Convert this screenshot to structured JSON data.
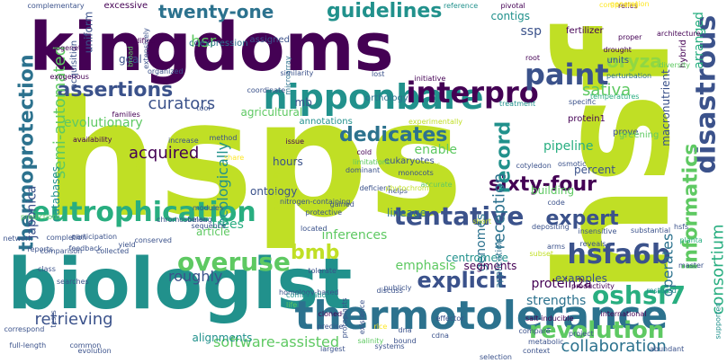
{
  "palette": {
    "yellowgreen": "#c0df25",
    "green": "#5ec962",
    "teal": "#21918c",
    "tealblue": "#2c728e",
    "blue": "#3b528b",
    "indigo": "#482878",
    "purple": "#440154",
    "lightgreen": "#90d743",
    "yellow": "#fde725",
    "cyan": "#28ae80"
  },
  "words": [
    {
      "text": "hsps",
      "color": "#c0df25"
    },
    {
      "text": "hsf",
      "color": "#c0df25"
    },
    {
      "text": "kingdoms",
      "color": "#440154"
    },
    {
      "text": "biologist",
      "color": "#21918c"
    },
    {
      "text": "thermotolerance",
      "color": "#2c728e"
    },
    {
      "text": "nipponbare",
      "color": "#21918c"
    },
    {
      "text": "interpro",
      "color": "#440154"
    },
    {
      "text": "paint",
      "color": "#3b528b"
    },
    {
      "text": "eutrophication",
      "color": "#28ae80"
    },
    {
      "text": "tentative",
      "color": "#3b528b"
    },
    {
      "text": "hsfa6b",
      "color": "#3b528b"
    },
    {
      "text": "overuse",
      "color": "#5ec962"
    },
    {
      "text": "revolution",
      "color": "#5ec962"
    },
    {
      "text": "oshsf7",
      "color": "#28ae80"
    },
    {
      "text": "thermoprotection",
      "color": "#2c728e"
    },
    {
      "text": "disastrous",
      "color": "#3b528b"
    },
    {
      "text": "informatics",
      "color": "#5ec962"
    },
    {
      "text": "assertions",
      "color": "#3b528b"
    },
    {
      "text": "guidelines",
      "color": "#21918c"
    },
    {
      "text": "twenty-one",
      "color": "#2c728e"
    },
    {
      "text": "sixty-four",
      "color": "#440154"
    },
    {
      "text": "explicit",
      "color": "#3b528b"
    },
    {
      "text": "expert",
      "color": "#3b528b"
    },
    {
      "text": "record",
      "color": "#21918c"
    },
    {
      "text": "dedicates",
      "color": "#2c728e"
    },
    {
      "text": "acquired",
      "color": "#440154"
    },
    {
      "text": "curators",
      "color": "#3b528b"
    },
    {
      "text": "retrieving",
      "color": "#3b528b"
    },
    {
      "text": "collaboration",
      "color": "#2c728e"
    },
    {
      "text": "reception",
      "color": "#2c728e"
    },
    {
      "text": "oryza",
      "color": "#90d743"
    },
    {
      "text": "sativa",
      "color": "#5ec962"
    },
    {
      "text": "operates",
      "color": "#2c728e"
    },
    {
      "text": "consortium",
      "color": "#28ae80"
    },
    {
      "text": "bmb",
      "color": "#c0df25"
    },
    {
      "text": "semi-automated",
      "color": "#5ec962"
    },
    {
      "text": "software-assisted",
      "color": "#5ec962"
    },
    {
      "text": "ecologically",
      "color": "#21918c"
    },
    {
      "text": "emphasis",
      "color": "#5ec962"
    },
    {
      "text": "enable",
      "color": "#5ec962"
    },
    {
      "text": "inferences",
      "color": "#5ec962"
    },
    {
      "text": "evolutionary",
      "color": "#5ec962"
    },
    {
      "text": "roughly",
      "color": "#3b528b"
    },
    {
      "text": "strengths",
      "color": "#2c728e"
    },
    {
      "text": "protein2a",
      "color": "#440154"
    },
    {
      "text": "genomes",
      "color": "#2c728e"
    },
    {
      "text": "japonica",
      "color": "#3b528b"
    },
    {
      "text": "macronutrient",
      "color": "#3b528b"
    },
    {
      "text": "hsr",
      "color": "#5ec962"
    },
    {
      "text": "ssp",
      "color": "#3b528b"
    },
    {
      "text": "contigs",
      "color": "#21918c"
    },
    {
      "text": "arranged",
      "color": "#28ae80"
    },
    {
      "text": "pipeline",
      "color": "#28ae80"
    },
    {
      "text": "building",
      "color": "#5ec962"
    },
    {
      "text": "percent",
      "color": "#3b528b"
    },
    {
      "text": "trees",
      "color": "#28ae80"
    },
    {
      "text": "hours",
      "color": "#3b528b"
    },
    {
      "text": "ontology",
      "color": "#3b528b"
    },
    {
      "text": "lineage",
      "color": "#2c728e"
    },
    {
      "text": "alignments",
      "color": "#21918c"
    },
    {
      "text": "centromere",
      "color": "#21918c"
    },
    {
      "text": "segments",
      "color": "#440154"
    },
    {
      "text": "examples",
      "color": "#3b528b"
    },
    {
      "text": "application",
      "color": "#2c728e"
    },
    {
      "text": "uniform",
      "color": "#3b528b"
    },
    {
      "text": "databases",
      "color": "#21918c"
    },
    {
      "text": "goal",
      "color": "#3b528b"
    },
    {
      "text": "article",
      "color": "#5ec962"
    },
    {
      "text": "mb",
      "color": "#3b528b"
    },
    {
      "text": "agricultural",
      "color": "#5ec962"
    },
    {
      "text": "eukaryotes",
      "color": "#3b528b"
    },
    {
      "text": "orthology",
      "color": "#2c728e"
    },
    {
      "text": "prove",
      "color": "#3b528b"
    },
    {
      "text": "greening",
      "color": "#5ec962"
    },
    {
      "text": "fertilizer",
      "color": "#440154"
    },
    {
      "text": "units",
      "color": "#3b528b"
    },
    {
      "text": "hybrid",
      "color": "#440154"
    },
    {
      "text": "protein1",
      "color": "#440154"
    },
    {
      "text": "excessive",
      "color": "#440154"
    },
    {
      "text": "coexpression",
      "color": "#2c728e"
    },
    {
      "text": "assigned",
      "color": "#3b528b"
    },
    {
      "text": "complementary",
      "color": "#3b528b"
    },
    {
      "text": "acquisition",
      "color": "#3b528b"
    },
    {
      "text": "annotations",
      "color": "#21918c"
    },
    {
      "text": "lost",
      "color": "#3b528b"
    },
    {
      "text": "initiative",
      "color": "#440154"
    },
    {
      "text": "specific",
      "color": "#3b528b"
    },
    {
      "text": "reference",
      "color": "#21918c"
    },
    {
      "text": "pivotal",
      "color": "#440154"
    },
    {
      "text": "relies",
      "color": "#440154"
    },
    {
      "text": "proper",
      "color": "#440154"
    },
    {
      "text": "architecture",
      "color": "#440154"
    },
    {
      "text": "drought",
      "color": "#440154"
    },
    {
      "text": "perturbation",
      "color": "#2c728e"
    },
    {
      "text": "diversity",
      "color": "#5ec962"
    },
    {
      "text": "temperatures",
      "color": "#28ae80"
    },
    {
      "text": "treatment",
      "color": "#21918c"
    },
    {
      "text": "cold",
      "color": "#440154"
    },
    {
      "text": "root",
      "color": "#440154"
    },
    {
      "text": "phylogenetic",
      "color": "#440154"
    },
    {
      "text": "modified",
      "color": "#440154"
    },
    {
      "text": "extensively",
      "color": "#3b528b"
    },
    {
      "text": "broad",
      "color": "#5ec962"
    },
    {
      "text": "microarray",
      "color": "#2c728e"
    },
    {
      "text": "similarity",
      "color": "#3b528b"
    },
    {
      "text": "exogenous",
      "color": "#440154"
    },
    {
      "text": "organized",
      "color": "#3b528b"
    },
    {
      "text": "coordinate",
      "color": "#3b528b"
    },
    {
      "text": "tool",
      "color": "#3b528b"
    },
    {
      "text": "families",
      "color": "#440154"
    },
    {
      "text": "availability",
      "color": "#440154"
    },
    {
      "text": "increase",
      "color": "#3b528b"
    },
    {
      "text": "method",
      "color": "#3b528b"
    },
    {
      "text": "issue",
      "color": "#440154"
    },
    {
      "text": "cdnas",
      "color": "#c0df25"
    },
    {
      "text": "monocots",
      "color": "#3b528b"
    },
    {
      "text": "accurate",
      "color": "#5ec962"
    },
    {
      "text": "limitations",
      "color": "#5ec962"
    },
    {
      "text": "dominant",
      "color": "#3b528b"
    },
    {
      "text": "cotyledon",
      "color": "#3b528b"
    },
    {
      "text": "osmotic",
      "color": "#3b528b"
    },
    {
      "text": "code",
      "color": "#3b528b"
    },
    {
      "text": "depositing",
      "color": "#3b528b"
    },
    {
      "text": "arms",
      "color": "#3b528b"
    },
    {
      "text": "reveals",
      "color": "#3b528b"
    },
    {
      "text": "insensitive",
      "color": "#3b528b"
    },
    {
      "text": "substantial",
      "color": "#3b528b"
    },
    {
      "text": "international",
      "color": "#440154"
    },
    {
      "text": "hsfs",
      "color": "#3b528b"
    },
    {
      "text": "planta",
      "color": "#28ae80"
    },
    {
      "text": "master",
      "color": "#3b528b"
    },
    {
      "text": "supported",
      "color": "#21918c"
    },
    {
      "text": "restored",
      "color": "#21918c"
    },
    {
      "text": "productivity",
      "color": "#440154"
    },
    {
      "text": "salt-inducible",
      "color": "#440154"
    },
    {
      "text": "project",
      "color": "#3b528b"
    },
    {
      "text": "compare",
      "color": "#3b528b"
    },
    {
      "text": "metabolic",
      "color": "#3b528b"
    },
    {
      "text": "context",
      "color": "#3b528b"
    },
    {
      "text": "effector",
      "color": "#3b528b"
    },
    {
      "text": "cdna",
      "color": "#3b528b"
    },
    {
      "text": "dna",
      "color": "#3b528b"
    },
    {
      "text": "publicly",
      "color": "#3b528b"
    },
    {
      "text": "homology-based",
      "color": "#3b528b"
    },
    {
      "text": "cloned",
      "color": "#440154"
    },
    {
      "text": "largest",
      "color": "#3b528b"
    },
    {
      "text": "bound",
      "color": "#3b528b"
    },
    {
      "text": "discuss",
      "color": "#3b528b"
    },
    {
      "text": "salinity",
      "color": "#5ec962"
    },
    {
      "text": "systems",
      "color": "#3b528b"
    },
    {
      "text": "existence",
      "color": "#3b528b"
    },
    {
      "text": "life",
      "color": "#5ec962"
    },
    {
      "text": "combinations",
      "color": "#21918c"
    },
    {
      "text": "precise",
      "color": "#3b528b"
    },
    {
      "text": "tolerate",
      "color": "#3b528b"
    },
    {
      "text": "located",
      "color": "#3b528b"
    },
    {
      "text": "nitrogen-containing",
      "color": "#3b528b"
    },
    {
      "text": "protective",
      "color": "#3b528b"
    },
    {
      "text": "gained",
      "color": "#3b528b"
    },
    {
      "text": "deficient",
      "color": "#3b528b"
    },
    {
      "text": "helps",
      "color": "#3b528b"
    },
    {
      "text": "modules",
      "color": "#3b528b"
    },
    {
      "text": "chromosomes",
      "color": "#3b528b"
    },
    {
      "text": "belong",
      "color": "#3b528b"
    },
    {
      "text": "sequence",
      "color": "#3b528b"
    },
    {
      "text": "conserved",
      "color": "#3b528b"
    },
    {
      "text": "yield",
      "color": "#3b528b"
    },
    {
      "text": "comparison",
      "color": "#3b528b"
    },
    {
      "text": "collected",
      "color": "#3b528b"
    },
    {
      "text": "predictions",
      "color": "#5ec962"
    },
    {
      "text": "completion",
      "color": "#3b528b"
    },
    {
      "text": "reports",
      "color": "#3b528b"
    },
    {
      "text": "network",
      "color": "#3b528b"
    },
    {
      "text": "participation",
      "color": "#3b528b"
    },
    {
      "text": "feedback",
      "color": "#3b528b"
    },
    {
      "text": "class",
      "color": "#3b528b"
    },
    {
      "text": "searches",
      "color": "#3b528b"
    },
    {
      "text": "tests",
      "color": "#3b528b"
    },
    {
      "text": "full-length",
      "color": "#3b528b"
    },
    {
      "text": "correspond",
      "color": "#3b528b"
    },
    {
      "text": "common",
      "color": "#3b528b"
    },
    {
      "text": "evolution",
      "color": "#3b528b"
    },
    {
      "text": "protoplasts",
      "color": "#3b528b"
    },
    {
      "text": "selection",
      "color": "#3b528b"
    },
    {
      "text": "abundant",
      "color": "#3b528b"
    },
    {
      "text": "share",
      "color": "#fde725"
    },
    {
      "text": "step",
      "color": "#c0df25"
    },
    {
      "text": "genetically",
      "color": "#c0df25"
    },
    {
      "text": "phytochrome",
      "color": "#c0df25"
    },
    {
      "text": "short",
      "color": "#c0df25"
    },
    {
      "text": "subset",
      "color": "#c0df25"
    },
    {
      "text": "experimentally",
      "color": "#c0df25"
    },
    {
      "text": "composing",
      "color": "#fde725"
    },
    {
      "text": "generation",
      "color": "#fde725"
    },
    {
      "text": "rice",
      "color": "#fde725"
    }
  ]
}
